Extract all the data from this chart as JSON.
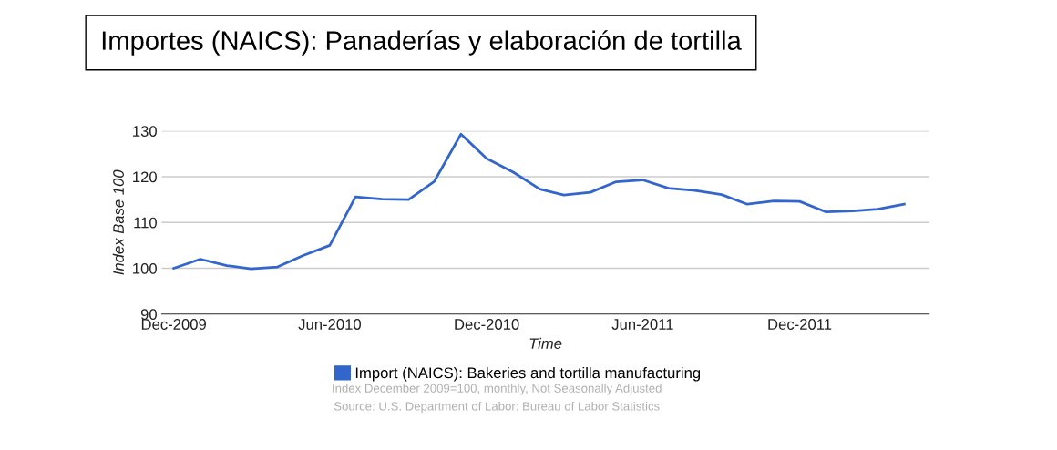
{
  "chart_data": {
    "type": "line",
    "title": "Importes (NAICS): Panaderías y elaboración de tortilla",
    "xlabel": "Time",
    "ylabel": "Index Base 100",
    "x": [
      "2009-12",
      "2010-01",
      "2010-02",
      "2010-03",
      "2010-04",
      "2010-05",
      "2010-06",
      "2010-07",
      "2010-08",
      "2010-09",
      "2010-10",
      "2010-11",
      "2010-12",
      "2011-01",
      "2011-02",
      "2011-03",
      "2011-04",
      "2011-05",
      "2011-06",
      "2011-07",
      "2011-08",
      "2011-09",
      "2011-10",
      "2011-11",
      "2011-12",
      "2012-01",
      "2012-02",
      "2012-03",
      "2012-04"
    ],
    "series": [
      {
        "name": "Import (NAICS): Bakeries and tortilla manufacturing",
        "color": "#3366cc",
        "values": [
          100,
          102,
          100.6,
          99.9,
          100.3,
          102.8,
          105,
          115.6,
          115.1,
          115,
          119,
          129.3,
          124,
          121,
          117.3,
          116,
          116.6,
          118.9,
          119.3,
          117.5,
          117,
          116.1,
          114,
          114.7,
          114.6,
          112.3,
          112.5,
          112.9,
          114
        ]
      }
    ],
    "xlim": [
      "2009-11-17",
      "2012-04-30"
    ],
    "xticks": [
      {
        "value": "2009-12",
        "label": "Dec-2009"
      },
      {
        "value": "2010-06",
        "label": "Jun-2010"
      },
      {
        "value": "2010-12",
        "label": "Dec-2010"
      },
      {
        "value": "2011-06",
        "label": "Jun-2011"
      },
      {
        "value": "2011-12",
        "label": "Dec-2011"
      }
    ],
    "ylim": [
      90,
      130
    ],
    "yticks": [
      90,
      100,
      110,
      120,
      130
    ],
    "grid": "y",
    "legend": "bottom",
    "marker": "none",
    "line_style": "solid",
    "annotations": [
      "Index December 2009=100, monthly, Not Seasonally Adjusted",
      "Source: U.S. Department of Labor: Bureau of Labor Statistics"
    ]
  }
}
